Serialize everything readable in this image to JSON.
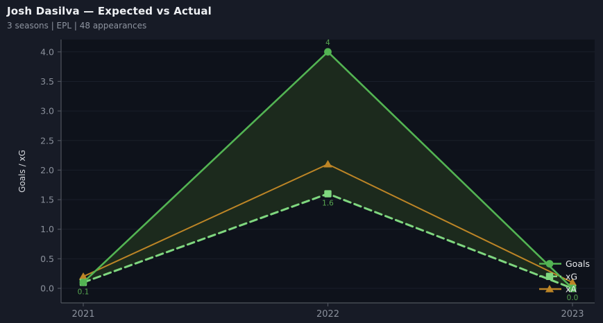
{
  "header": {
    "title": "Josh Dasilva — Expected vs Actual",
    "subtitle": "3 seasons | EPL | 48 appearances"
  },
  "colors": {
    "background": "#171b26",
    "plot_background": "#0e121b",
    "grid": "#1a1f2b",
    "axis": "#50555e",
    "tick_text": "#8b919c",
    "axis_label_text": "#d6d9de",
    "legend_text": "#e8eaed",
    "point_label_text": "#58a851",
    "fill_between": "#1c2a1d",
    "goals": "#53b453",
    "xg": "#7fd77f",
    "xa": "#bd8526"
  },
  "chart_data": {
    "type": "line",
    "title": "Josh Dasilva — Expected vs Actual",
    "subtitle": "3 seasons | EPL | 48 appearances",
    "xlabel": "",
    "ylabel": "Goals / xG",
    "categories": [
      "2021",
      "2022",
      "2023"
    ],
    "ylim": [
      -0.25,
      4.2
    ],
    "ytick_values": [
      0.0,
      0.5,
      1.0,
      1.5,
      2.0,
      2.5,
      3.0,
      3.5,
      4.0
    ],
    "grid": "faint-horizontal",
    "legend_position": "right-of-last-point",
    "series": [
      {
        "name": "Goals",
        "marker": "circle",
        "line_style": "solid",
        "color_key": "goals",
        "values": [
          0.1,
          4,
          0
        ]
      },
      {
        "name": "xG",
        "marker": "square",
        "line_style": "dashed",
        "color_key": "xg",
        "values": [
          0.1,
          1.6,
          0
        ]
      },
      {
        "name": "xA",
        "marker": "triangle",
        "line_style": "solid",
        "color_key": "xa",
        "values": [
          0.2,
          2.1,
          0.1
        ]
      }
    ],
    "fill_between": {
      "upper": "Goals",
      "lower": "xG",
      "color_key": "fill_between"
    },
    "point_labels": [
      {
        "text": "0.1",
        "category": "2021",
        "series": "xG",
        "position": "below"
      },
      {
        "text": "4",
        "category": "2022",
        "series": "Goals",
        "position": "above"
      },
      {
        "text": "1.6",
        "category": "2022",
        "series": "xG",
        "position": "below"
      },
      {
        "text": "0.0",
        "category": "2023",
        "series": "xG",
        "position": "below"
      }
    ],
    "legend_entries": [
      "Goals",
      "xG",
      "xA"
    ]
  }
}
